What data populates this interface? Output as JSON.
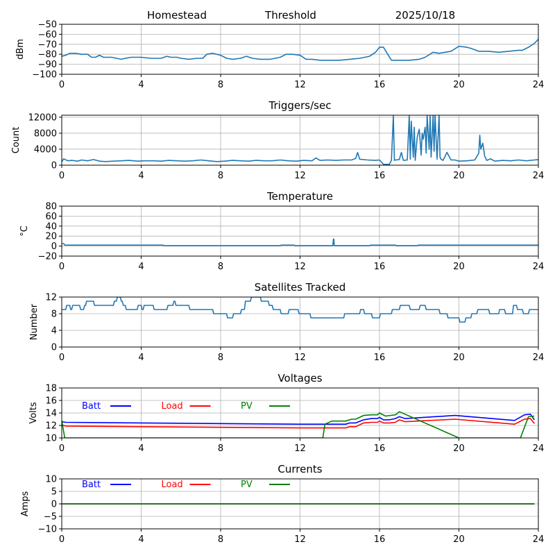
{
  "header": {
    "site": "Homestead",
    "mode": "Threshold",
    "date": "2025/10/18"
  },
  "colors": {
    "series_default": "#1f77b4",
    "batt": "#0000ff",
    "load": "#ff0000",
    "pv": "#008000",
    "grid": "#b0b0b0",
    "axes": "#000000"
  },
  "chart_data": [
    {
      "id": "signal",
      "type": "line",
      "title": "",
      "xlabel": "",
      "ylabel": "dBm",
      "xlim": [
        0,
        24
      ],
      "ylim": [
        -100,
        -50
      ],
      "xticks": [
        0,
        4,
        8,
        12,
        16,
        20,
        24
      ],
      "yticks": [
        -100,
        -90,
        -80,
        -70,
        -60,
        -50
      ],
      "ytick_labels": [
        "−100",
        "−90",
        "−80",
        "−70",
        "−60",
        "−50"
      ],
      "grid": true,
      "series": [
        {
          "name": "Signal",
          "color_key": "series_default",
          "x": [
            0,
            0.2,
            0.4,
            0.7,
            1.0,
            1.3,
            1.5,
            1.7,
            1.9,
            2.1,
            2.5,
            3.0,
            3.2,
            3.5,
            4.0,
            4.5,
            5.0,
            5.3,
            5.5,
            5.8,
            6.0,
            6.4,
            6.8,
            7.1,
            7.3,
            7.6,
            8.0,
            8.3,
            8.6,
            9.0,
            9.3,
            9.6,
            10.0,
            10.5,
            11.0,
            11.3,
            11.6,
            12.0,
            12.3,
            12.6,
            13.0,
            13.5,
            14.0,
            14.5,
            15.0,
            15.5,
            15.8,
            16.0,
            16.2,
            16.6,
            17.0,
            17.5,
            18.0,
            18.3,
            18.7,
            19.0,
            19.3,
            19.6,
            20.0,
            20.4,
            20.6,
            21.0,
            21.5,
            22.0,
            22.5,
            23.0,
            23.2,
            23.5,
            23.8,
            24.0
          ],
          "y": [
            -82,
            -81,
            -79,
            -79,
            -80,
            -80,
            -83,
            -83,
            -81,
            -83,
            -83,
            -85,
            -84,
            -83,
            -83,
            -84,
            -84,
            -82,
            -83,
            -83,
            -84,
            -85,
            -84,
            -84,
            -80,
            -79,
            -81,
            -84,
            -85,
            -84,
            -82,
            -84,
            -85,
            -85,
            -83,
            -80,
            -80,
            -81,
            -85,
            -85,
            -86,
            -86,
            -86,
            -85,
            -84,
            -82,
            -78,
            -73,
            -73,
            -86,
            -86,
            -86,
            -85,
            -83,
            -78,
            -79,
            -78,
            -77,
            -72,
            -73,
            -74,
            -77,
            -77,
            -78,
            -77,
            -76,
            -76,
            -73,
            -69,
            -65
          ]
        }
      ]
    },
    {
      "id": "triggers",
      "type": "line",
      "title": "Triggers/sec",
      "xlabel": "",
      "ylabel": "Count",
      "xlim": [
        0,
        24
      ],
      "ylim": [
        0,
        12500
      ],
      "xticks": [
        0,
        4,
        8,
        12,
        16,
        20,
        24
      ],
      "yticks": [
        0,
        4000,
        8000,
        12000
      ],
      "ytick_labels": [
        "0",
        "4000",
        "8000",
        "12000"
      ],
      "grid": true,
      "series": [
        {
          "name": "Triggers",
          "color_key": "series_default",
          "x": [
            0,
            0.1,
            0.3,
            0.5,
            0.8,
            1.0,
            1.3,
            1.6,
            1.9,
            2.2,
            2.6,
            3.0,
            3.4,
            3.8,
            4.2,
            4.6,
            5.0,
            5.4,
            5.8,
            6.2,
            6.6,
            7.0,
            7.4,
            7.8,
            8.2,
            8.6,
            9.0,
            9.4,
            9.8,
            10.2,
            10.6,
            11.0,
            11.4,
            11.8,
            12.2,
            12.6,
            12.8,
            13.0,
            13.4,
            13.8,
            14.2,
            14.6,
            14.8,
            14.9,
            15.0,
            15.4,
            15.8,
            16.0,
            16.2,
            16.5,
            16.6,
            16.7,
            16.75,
            16.8,
            17.0,
            17.1,
            17.2,
            17.4,
            17.5,
            17.55,
            17.6,
            17.7,
            17.75,
            17.8,
            17.9,
            18.0,
            18.1,
            18.15,
            18.2,
            18.3,
            18.35,
            18.4,
            18.5,
            18.55,
            18.6,
            18.7,
            18.75,
            18.8,
            18.9,
            19.0,
            19.05,
            19.1,
            19.2,
            19.4,
            19.6,
            19.8,
            20.0,
            20.4,
            20.8,
            21.0,
            21.05,
            21.1,
            21.2,
            21.3,
            21.4,
            21.6,
            21.8,
            22.2,
            22.6,
            23.0,
            23.4,
            23.8,
            24.0
          ],
          "y": [
            900,
            1600,
            1100,
            1200,
            1000,
            1300,
            1100,
            1400,
            1000,
            900,
            1000,
            1100,
            1200,
            1000,
            1100,
            1100,
            1000,
            1200,
            1100,
            1000,
            1100,
            1300,
            1100,
            900,
            1000,
            1200,
            1100,
            1000,
            1200,
            1100,
            1100,
            1300,
            1100,
            1000,
            1200,
            1100,
            1800,
            1200,
            1300,
            1200,
            1300,
            1300,
            1700,
            3200,
            1500,
            1300,
            1200,
            1300,
            200,
            200,
            1200,
            12500,
            1200,
            1300,
            1400,
            3200,
            1200,
            1300,
            12500,
            1500,
            11000,
            2000,
            9500,
            1200,
            7000,
            9000,
            2500,
            8000,
            6500,
            9500,
            3000,
            12500,
            4000,
            12500,
            2000,
            12500,
            3500,
            12500,
            1500,
            12500,
            2000,
            1500,
            1200,
            3200,
            1300,
            1300,
            1000,
            1100,
            1300,
            3000,
            7500,
            4000,
            5500,
            2200,
            1200,
            1600,
            1000,
            1200,
            1100,
            1300,
            1100,
            1300,
            1400
          ]
        }
      ]
    },
    {
      "id": "temperature",
      "type": "line",
      "title": "Temperature",
      "xlabel": "",
      "ylabel": "°C",
      "xlim": [
        0,
        24
      ],
      "ylim": [
        -20,
        80
      ],
      "xticks": [
        0,
        4,
        8,
        12,
        16,
        20,
        24
      ],
      "yticks": [
        -20,
        0,
        20,
        40,
        60,
        80
      ],
      "ytick_labels": [
        "−20",
        "0",
        "20",
        "40",
        "60",
        "80"
      ],
      "grid": true,
      "series": [
        {
          "name": "Temperature",
          "color_key": "series_default",
          "x": [
            0,
            0.1,
            0.15,
            5.1,
            5.15,
            11.0,
            11.05,
            11.7,
            11.75,
            13.65,
            13.68,
            13.7,
            13.72,
            15.5,
            15.55,
            16.8,
            16.85,
            17.9,
            17.95,
            24.0
          ],
          "y": [
            5,
            5,
            2,
            2,
            1,
            1,
            2,
            2,
            1,
            1,
            14,
            14,
            1,
            1,
            2,
            2,
            1,
            1,
            2,
            2
          ]
        }
      ]
    },
    {
      "id": "satellites",
      "type": "line",
      "title": "Satellites Tracked",
      "xlabel": "",
      "ylabel": "Number",
      "xlim": [
        0,
        24
      ],
      "ylim": [
        0,
        12
      ],
      "xticks": [
        0,
        4,
        8,
        12,
        16,
        20,
        24
      ],
      "yticks": [
        0,
        4,
        8,
        12
      ],
      "ytick_labels": [
        "0",
        "4",
        "8",
        "12"
      ],
      "grid": true,
      "series": [
        {
          "name": "Satellites",
          "color_key": "series_default",
          "x": [
            0,
            0.2,
            0.25,
            0.4,
            0.45,
            0.5,
            0.55,
            0.6,
            0.65,
            0.9,
            0.95,
            1.1,
            1.15,
            1.2,
            1.25,
            1.6,
            1.65,
            2.6,
            2.65,
            2.75,
            2.8,
            2.95,
            3.0,
            3.05,
            3.1,
            3.2,
            3.25,
            3.8,
            3.85,
            4.0,
            4.05,
            4.1,
            4.15,
            4.6,
            4.65,
            5.3,
            5.35,
            5.6,
            5.65,
            5.7,
            5.75,
            6.2,
            6.25,
            6.4,
            6.45,
            6.7,
            6.75,
            7.6,
            7.65,
            8.3,
            8.35,
            8.6,
            8.65,
            9.0,
            9.05,
            9.2,
            9.25,
            9.5,
            9.55,
            10.0,
            10.05,
            10.4,
            10.45,
            10.6,
            10.65,
            11.0,
            11.05,
            11.4,
            11.45,
            11.9,
            11.95,
            12.5,
            12.55,
            14.2,
            14.25,
            15.0,
            15.05,
            15.2,
            15.25,
            15.6,
            15.65,
            16.0,
            16.05,
            16.6,
            16.65,
            17.0,
            17.05,
            17.5,
            17.55,
            18.0,
            18.05,
            18.3,
            18.35,
            19.0,
            19.05,
            19.4,
            19.45,
            20.0,
            20.05,
            20.3,
            20.35,
            20.6,
            20.65,
            20.9,
            20.95,
            21.5,
            21.55,
            22.0,
            22.05,
            22.3,
            22.35,
            22.7,
            22.75,
            22.9,
            22.95,
            23.2,
            23.25,
            23.5,
            23.55,
            23.8,
            23.85,
            24.0
          ],
          "y": [
            9,
            9,
            10,
            10,
            9,
            9,
            10,
            10,
            10,
            10,
            9,
            9,
            10,
            10,
            11,
            11,
            10,
            10,
            11,
            11,
            12,
            12,
            11,
            11,
            10,
            10,
            9,
            9,
            10,
            10,
            9,
            9,
            10,
            10,
            9,
            9,
            10,
            10,
            11,
            11,
            10,
            10,
            10,
            10,
            9,
            9,
            9,
            9,
            8,
            8,
            7,
            7,
            8,
            8,
            9,
            9,
            11,
            11,
            12,
            12,
            11,
            11,
            10,
            10,
            9,
            9,
            8,
            8,
            9,
            9,
            8,
            8,
            7,
            7,
            8,
            8,
            9,
            9,
            8,
            8,
            7,
            7,
            8,
            8,
            9,
            9,
            10,
            10,
            9,
            9,
            10,
            10,
            9,
            9,
            8,
            8,
            7,
            7,
            6,
            6,
            7,
            7,
            8,
            8,
            9,
            9,
            8,
            8,
            9,
            9,
            8,
            8,
            10,
            10,
            9,
            9,
            8,
            8,
            9,
            9,
            9,
            9
          ]
        }
      ]
    },
    {
      "id": "voltages",
      "type": "line",
      "title": "Voltages",
      "xlabel": "",
      "ylabel": "Volts",
      "xlim": [
        0,
        24
      ],
      "ylim": [
        10,
        18
      ],
      "xticks": [
        0,
        4,
        8,
        12,
        16,
        20,
        24
      ],
      "yticks": [
        10,
        12,
        14,
        16,
        18
      ],
      "ytick_labels": [
        "10",
        "12",
        "14",
        "16",
        "18"
      ],
      "grid": true,
      "legend": {
        "placement": "top-left-inline",
        "entries": [
          {
            "label": "Batt",
            "color_key": "batt"
          },
          {
            "label": "Load",
            "color_key": "load"
          },
          {
            "label": "PV",
            "color_key": "pv"
          }
        ]
      },
      "series": [
        {
          "name": "Batt",
          "color_key": "batt",
          "x": [
            0,
            0.2,
            4,
            8,
            12,
            13.3,
            14.3,
            14.5,
            14.8,
            15.2,
            15.6,
            15.9,
            16.0,
            16.2,
            16.5,
            16.8,
            17.0,
            17.3,
            19.8,
            22.8,
            23.3,
            23.6,
            23.8
          ],
          "y": [
            12.6,
            12.5,
            12.4,
            12.3,
            12.2,
            12.2,
            12.2,
            12.4,
            12.4,
            12.9,
            13.1,
            13.1,
            13.3,
            12.9,
            12.9,
            13.1,
            13.4,
            13.1,
            13.6,
            12.8,
            13.7,
            13.8,
            12.9
          ]
        },
        {
          "name": "Load",
          "color_key": "load",
          "x": [
            0,
            0.2,
            4,
            8,
            12,
            13.3,
            14.3,
            14.5,
            14.8,
            15.2,
            15.6,
            15.9,
            16.0,
            16.2,
            16.5,
            16.8,
            17.0,
            17.3,
            19.8,
            22.8,
            23.3,
            23.6,
            23.8
          ],
          "y": [
            12.1,
            11.9,
            11.8,
            11.7,
            11.6,
            11.6,
            11.6,
            11.8,
            11.8,
            12.4,
            12.5,
            12.5,
            12.7,
            12.4,
            12.4,
            12.5,
            12.9,
            12.6,
            13.0,
            12.2,
            13.0,
            13.1,
            12.3
          ]
        },
        {
          "name": "PV",
          "color_key": "pv",
          "x": [
            0,
            0.15,
            13.15,
            13.25,
            13.6,
            14.3,
            14.6,
            14.8,
            15.2,
            15.6,
            15.9,
            16.0,
            16.3,
            16.8,
            17.0,
            20.0,
            23.1,
            23.5,
            23.8
          ],
          "y": [
            12.8,
            10.0,
            10.0,
            12.2,
            12.7,
            12.7,
            13.0,
            13.0,
            13.6,
            13.7,
            13.7,
            14.0,
            13.5,
            13.7,
            14.2,
            10.0,
            10.0,
            13.4,
            13.5
          ]
        }
      ]
    },
    {
      "id": "currents",
      "type": "line",
      "title": "Currents",
      "xlabel": "",
      "ylabel": "Amps",
      "xlim": [
        0,
        24
      ],
      "ylim": [
        -10,
        10
      ],
      "xticks": [
        0,
        4,
        8,
        12,
        16,
        20,
        24
      ],
      "yticks": [
        -10,
        -5,
        0,
        5,
        10
      ],
      "ytick_labels": [
        "−10",
        "−5",
        "0",
        "5",
        "10"
      ],
      "grid": true,
      "legend": {
        "placement": "top-left-inline",
        "entries": [
          {
            "label": "Batt",
            "color_key": "batt"
          },
          {
            "label": "Load",
            "color_key": "load"
          },
          {
            "label": "PV",
            "color_key": "pv"
          }
        ]
      },
      "series": [
        {
          "name": "Batt",
          "color_key": "batt",
          "x": [
            0,
            23.8
          ],
          "y": [
            0,
            0
          ]
        },
        {
          "name": "Load",
          "color_key": "load",
          "x": [
            0,
            23.8
          ],
          "y": [
            0,
            0
          ]
        },
        {
          "name": "PV",
          "color_key": "pv",
          "x": [
            0,
            23.8
          ],
          "y": [
            0,
            0
          ]
        }
      ]
    }
  ]
}
